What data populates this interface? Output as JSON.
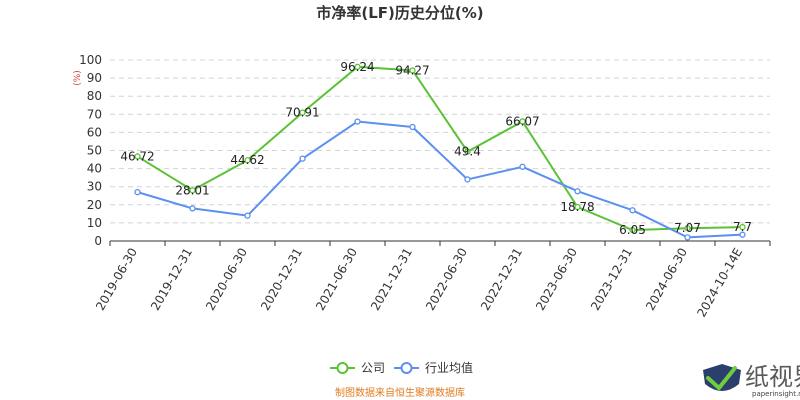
{
  "chart_data": {
    "type": "line",
    "title": "市净率(LF)历史分位(%)",
    "unit_label": "(%)",
    "categories": [
      "2019-06-30",
      "2019-12-31",
      "2020-06-30",
      "2020-12-31",
      "2021-06-30",
      "2021-12-31",
      "2022-06-30",
      "2022-12-31",
      "2023-06-30",
      "2023-12-31",
      "2024-06-30",
      "2024-10-14E"
    ],
    "ylim": [
      0,
      100
    ],
    "yticks": [
      0,
      10,
      20,
      30,
      40,
      50,
      60,
      70,
      80,
      90,
      100
    ],
    "grid": true,
    "legend_position": "bottom-center",
    "series": [
      {
        "name": "公司",
        "color": "#5bc236",
        "values": [
          46.72,
          28.01,
          44.62,
          70.91,
          96.24,
          94.27,
          49.4,
          66.07,
          18.78,
          6.05,
          7.07,
          7.7
        ],
        "labels": [
          "46.72",
          "28.01",
          "44.62",
          "70.91",
          "96.24",
          "94.27",
          "49.4",
          "66.07",
          "18.78",
          "6.05",
          "7.07",
          "7.7"
        ]
      },
      {
        "name": "行业均值",
        "color": "#5b8ff0",
        "values": [
          27,
          18,
          14,
          45.5,
          66,
          63,
          34,
          41,
          27.5,
          17,
          2,
          3.5
        ]
      }
    ]
  },
  "source_text": "制图数据来自恒生聚源数据库",
  "watermark": {
    "text": "纸视界",
    "url": "paperinsight.net"
  }
}
